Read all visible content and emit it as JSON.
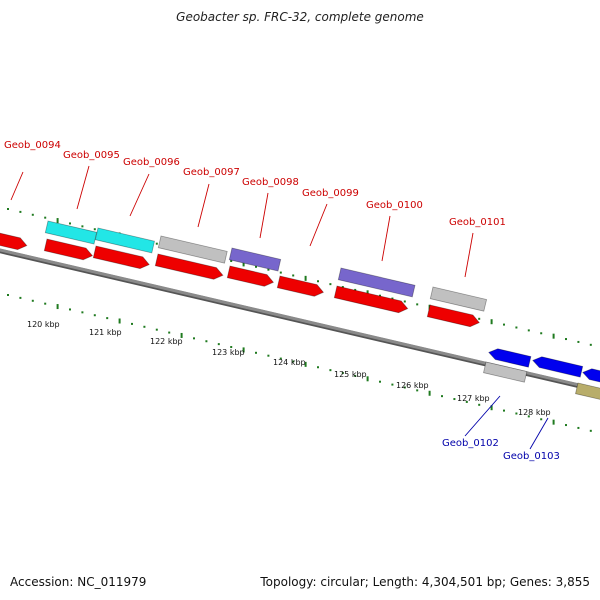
{
  "title": "Geobacter sp. FRC-32, complete genome",
  "accession": "Accession: NC_011979",
  "summary": "Topology: circular; Length: 4,304,501 bp; Genes: 3,855",
  "colors": {
    "backbone": "#8a8a8a",
    "tick": "#1f7a1f",
    "label_forward": "#cc0000",
    "label_reverse": "#0000aa",
    "cds": "#ee0000",
    "cyan": "#22e6e6",
    "gray": "#c0c0c0",
    "purple": "#7766cc",
    "blue": "#0000ee",
    "olive": "#b8ad6a"
  },
  "scale": {
    "ticks": [
      {
        "label": "120 kbp"
      },
      {
        "label": "121 kbp"
      },
      {
        "label": "122 kbp"
      },
      {
        "label": "123 kbp"
      },
      {
        "label": "124 kbp"
      },
      {
        "label": "125 kbp"
      },
      {
        "label": "126 kbp"
      },
      {
        "label": "127 kbp"
      },
      {
        "label": "128 kbp"
      }
    ]
  },
  "features": [
    {
      "color": "cds",
      "strand": "+"
    },
    {
      "color": "cyan",
      "strand": "+"
    },
    {
      "color": "cds",
      "strand": "+"
    },
    {
      "color": "cyan",
      "strand": "+"
    },
    {
      "color": "cds",
      "strand": "+"
    },
    {
      "color": "gray",
      "strand": "+"
    },
    {
      "color": "cds",
      "strand": "+"
    },
    {
      "color": "purple",
      "strand": "+"
    },
    {
      "color": "cds",
      "strand": "+"
    },
    {
      "color": "cds",
      "strand": "+"
    },
    {
      "color": "purple",
      "strand": "+"
    },
    {
      "color": "cds",
      "strand": "+"
    },
    {
      "color": "gray",
      "strand": "+"
    },
    {
      "color": "cds",
      "strand": "+"
    },
    {
      "color": "blue",
      "strand": "-"
    },
    {
      "color": "gray",
      "strand": "-"
    },
    {
      "color": "blue",
      "strand": "-"
    },
    {
      "color": "blue",
      "strand": "-"
    },
    {
      "color": "olive",
      "strand": "-"
    }
  ],
  "gene_labels": [
    {
      "text": "Geob_0094",
      "strand": "+"
    },
    {
      "text": "Geob_0095",
      "strand": "+"
    },
    {
      "text": "Geob_0096",
      "strand": "+"
    },
    {
      "text": "Geob_0097",
      "strand": "+"
    },
    {
      "text": "Geob_0098",
      "strand": "+"
    },
    {
      "text": "Geob_0099",
      "strand": "+"
    },
    {
      "text": "Geob_0100",
      "strand": "+"
    },
    {
      "text": "Geob_0101",
      "strand": "+"
    },
    {
      "text": "Geob_0102",
      "strand": "-"
    },
    {
      "text": "Geob_0103",
      "strand": "-"
    }
  ]
}
